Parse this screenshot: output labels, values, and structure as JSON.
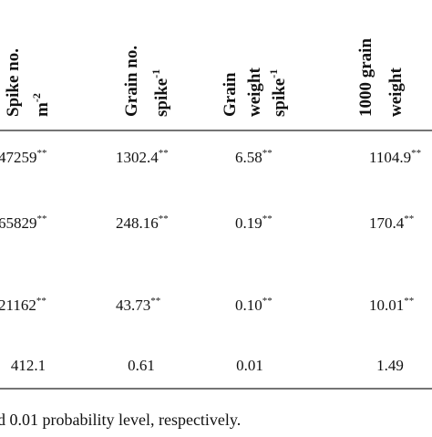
{
  "table": {
    "header": [
      {
        "lines": [
          {
            "text": "Spike no."
          },
          {
            "text": "m",
            "sup": "-2"
          }
        ]
      },
      {
        "lines": [
          {
            "text": "Grain no."
          },
          {
            "text": "spike",
            "sup": "-1"
          }
        ]
      },
      {
        "lines": [
          {
            "text": "Grain"
          },
          {
            "text": "weight"
          },
          {
            "text": "spike",
            "sup": "-1"
          }
        ]
      },
      {
        "lines": [
          {
            "text": "1000 grain"
          },
          {
            "text": "weight"
          }
        ]
      }
    ],
    "rows": [
      [
        {
          "text": "47259",
          "sup": "**"
        },
        {
          "text": "1302.4",
          "sup": "**"
        },
        {
          "text": "6.58",
          "sup": "**"
        },
        {
          "text": "1104.9",
          "sup": "**"
        }
      ],
      [
        {
          "text": "65829",
          "sup": "**"
        },
        {
          "text": "248.16",
          "sup": "**"
        },
        {
          "text": "0.19",
          "sup": "**"
        },
        {
          "text": "170.4",
          "sup": "**"
        }
      ],
      [
        {
          "text": "21162",
          "sup": "**"
        },
        {
          "text": "43.73",
          "sup": "**"
        },
        {
          "text": "0.10",
          "sup": "**"
        },
        {
          "text": "10.01",
          "sup": "**"
        }
      ],
      [
        {
          "text": "412.1"
        },
        {
          "text": "0.61"
        },
        {
          "text": "0.01"
        },
        {
          "text": "1.49"
        }
      ]
    ]
  },
  "footnote": "d 0.01 probability level, respectively."
}
